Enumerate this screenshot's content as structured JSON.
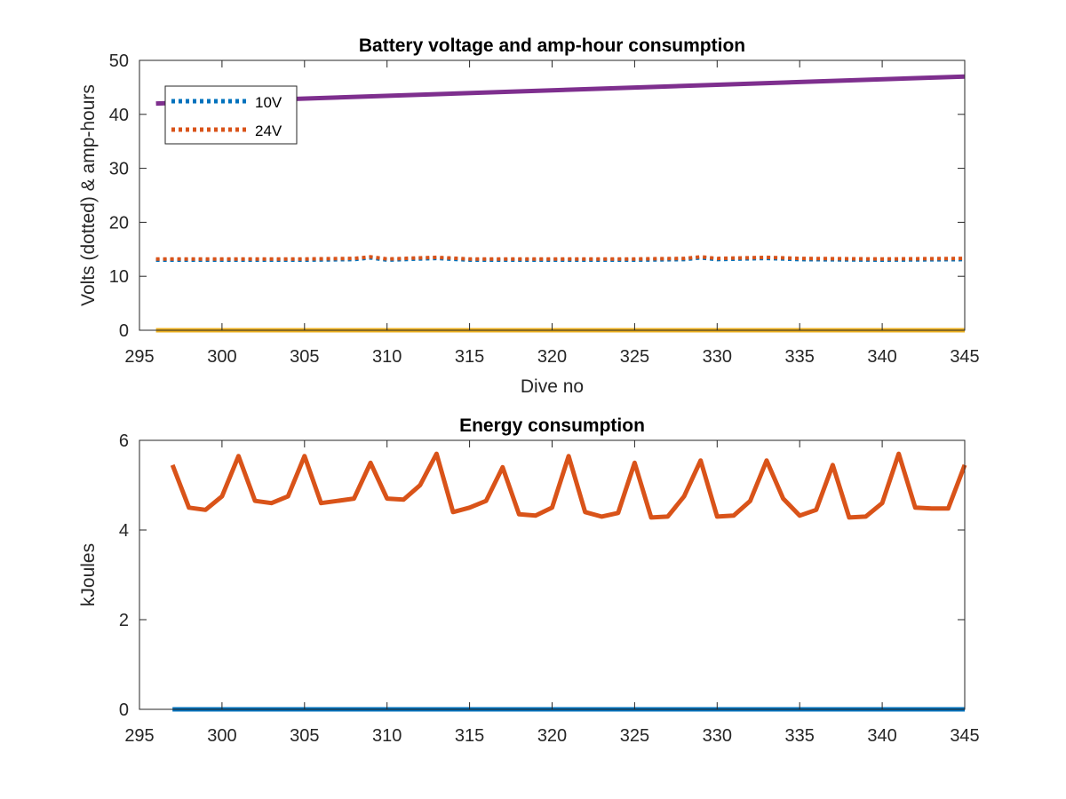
{
  "chart_data": [
    {
      "type": "line",
      "title": "Battery voltage and amp-hour consumption",
      "xlabel": "Dive no",
      "ylabel": "Volts (dotted) & amp-hours",
      "xlim": [
        295,
        345
      ],
      "ylim": [
        0,
        50
      ],
      "xticks": [
        "295",
        "300",
        "305",
        "310",
        "315",
        "320",
        "325",
        "330",
        "335",
        "340",
        "345"
      ],
      "yticks": [
        "0",
        "10",
        "20",
        "30",
        "40",
        "50"
      ],
      "legend": {
        "position": "top-left",
        "entries": [
          "10V",
          "24V"
        ]
      },
      "grid": false,
      "series": [
        {
          "name": "10V",
          "style": "dotted",
          "color": "#0072BD",
          "x": [
            296,
            300,
            305,
            308,
            309,
            310,
            313,
            315,
            320,
            325,
            328,
            329,
            330,
            333,
            335,
            340,
            345
          ],
          "y": [
            13.0,
            13.0,
            13.0,
            13.1,
            13.4,
            13.0,
            13.3,
            13.0,
            13.0,
            13.0,
            13.1,
            13.4,
            13.1,
            13.3,
            13.1,
            13.0,
            13.1
          ]
        },
        {
          "name": "24V",
          "style": "dotted",
          "color": "#D95319",
          "x": [
            296,
            300,
            305,
            308,
            309,
            310,
            313,
            315,
            320,
            325,
            328,
            329,
            330,
            333,
            335,
            340,
            345
          ],
          "y": [
            13.2,
            13.2,
            13.2,
            13.3,
            13.6,
            13.2,
            13.5,
            13.2,
            13.2,
            13.2,
            13.3,
            13.6,
            13.3,
            13.5,
            13.3,
            13.2,
            13.3
          ]
        },
        {
          "style": "solid",
          "color": "#EDB120",
          "x": [
            296,
            345
          ],
          "y": [
            0,
            0
          ]
        },
        {
          "style": "solid",
          "color": "#7E2F8E",
          "x": [
            296,
            345
          ],
          "y": [
            42,
            47
          ]
        }
      ]
    },
    {
      "type": "line",
      "title": "Energy consumption",
      "xlabel": "",
      "ylabel": "kJoules",
      "xlim": [
        295,
        345
      ],
      "ylim": [
        0,
        6
      ],
      "xticks": [
        "295",
        "300",
        "305",
        "310",
        "315",
        "320",
        "325",
        "330",
        "335",
        "340",
        "345"
      ],
      "yticks": [
        "0",
        "2",
        "4",
        "6"
      ],
      "grid": false,
      "series": [
        {
          "style": "solid",
          "color": "#0072BD",
          "x": [
            297,
            345
          ],
          "y": [
            0,
            0
          ]
        },
        {
          "style": "solid",
          "color": "#D95319",
          "x": [
            297,
            298,
            299,
            300,
            301,
            302,
            303,
            304,
            305,
            306,
            307,
            308,
            309,
            310,
            311,
            312,
            313,
            314,
            315,
            316,
            317,
            318,
            319,
            320,
            321,
            322,
            323,
            324,
            325,
            326,
            327,
            328,
            329,
            330,
            331,
            332,
            333,
            334,
            335,
            336,
            337,
            338,
            339,
            340,
            341,
            342,
            343,
            344,
            345
          ],
          "y": [
            5.45,
            4.5,
            4.45,
            4.75,
            5.65,
            4.65,
            4.6,
            4.75,
            5.65,
            4.6,
            4.65,
            4.7,
            5.5,
            4.7,
            4.68,
            5.0,
            5.7,
            4.4,
            4.5,
            4.65,
            5.4,
            4.35,
            4.32,
            4.5,
            5.65,
            4.4,
            4.3,
            4.38,
            5.5,
            4.28,
            4.3,
            4.75,
            5.55,
            4.3,
            4.32,
            4.65,
            5.55,
            4.7,
            4.32,
            4.45,
            5.45,
            4.28,
            4.3,
            4.6,
            5.7,
            4.5,
            4.48,
            4.48,
            5.45
          ]
        }
      ]
    }
  ]
}
